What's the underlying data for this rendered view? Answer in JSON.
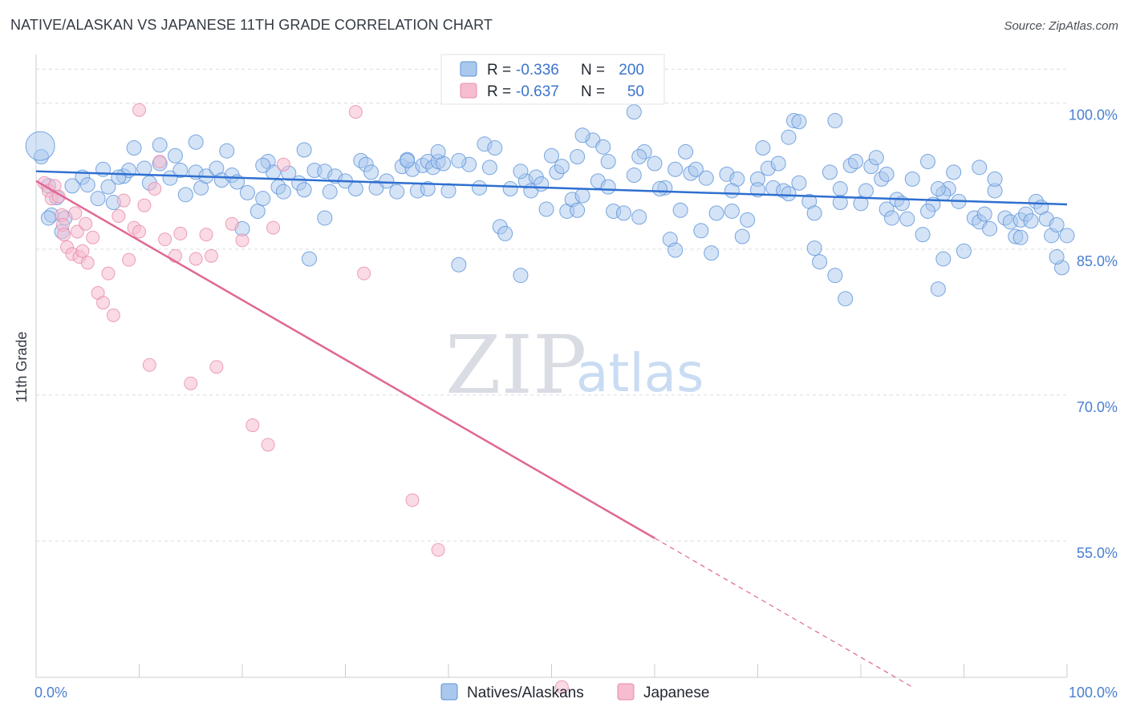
{
  "title": "NATIVE/ALASKAN VS JAPANESE 11TH GRADE CORRELATION CHART",
  "source": "Source: ZipAtlas.com",
  "watermark": {
    "zip": "ZIP",
    "atlas": "atlas"
  },
  "stats": {
    "r_label": "R =",
    "n_label": "N =",
    "rows": [
      {
        "r": "-0.336",
        "n": "200"
      },
      {
        "r": "-0.637",
        "n": "50"
      }
    ]
  },
  "chart_data": {
    "type": "scatter",
    "title": "NATIVE/ALASKAN VS JAPANESE 11TH GRADE CORRELATION CHART",
    "xlabel": "",
    "ylabel": "11th Grade",
    "xlim": [
      0,
      100
    ],
    "ylim": [
      41,
      105
    ],
    "x_tick_labels": [
      "0.0%",
      "100.0%"
    ],
    "y_ticks": [
      55,
      70,
      85,
      100
    ],
    "y_tick_labels": [
      "55.0%",
      "70.0%",
      "85.0%",
      "100.0%"
    ],
    "grid": true,
    "legend_position": "bottom-center",
    "colors": {
      "natives_fill": "#aac8ee",
      "natives_stroke": "#5b92d9",
      "natives_line": "#2e6fd0",
      "japanese_fill": "#f6bcd0",
      "japanese_stroke": "#e88aa9",
      "japanese_line": "#e06793",
      "grid": "#d7dbe0",
      "tick_label": "#4a7fd0"
    },
    "series": [
      {
        "name": "Natives/Alaskans",
        "r": -0.336,
        "n": 200,
        "trend": {
          "x": [
            0,
            100
          ],
          "y": [
            93.0,
            89.6
          ]
        },
        "points": [
          [
            0.5,
            94.5
          ],
          [
            1.2,
            91.5
          ],
          [
            1.5,
            88.5
          ],
          [
            2.0,
            90.3
          ],
          [
            2.5,
            86.8
          ],
          [
            2.8,
            88.2
          ],
          [
            4.5,
            92.4
          ],
          [
            5.0,
            91.6
          ],
          [
            6.0,
            90.2
          ],
          [
            7.0,
            91.4
          ],
          [
            6.5,
            93.2
          ],
          [
            7.5,
            89.8
          ],
          [
            8.5,
            92.5
          ],
          [
            9.0,
            93.1
          ],
          [
            9.5,
            95.4
          ],
          [
            10.5,
            93.3
          ],
          [
            11.0,
            91.8
          ],
          [
            12.0,
            93.8
          ],
          [
            13.0,
            92.3
          ],
          [
            13.5,
            94.6
          ],
          [
            14.0,
            93.1
          ],
          [
            14.5,
            90.6
          ],
          [
            15.5,
            92.9
          ],
          [
            16.0,
            91.3
          ],
          [
            16.5,
            92.5
          ],
          [
            17.5,
            93.3
          ],
          [
            18.0,
            92.1
          ],
          [
            19.0,
            92.6
          ],
          [
            19.5,
            91.9
          ],
          [
            20.0,
            87.1
          ],
          [
            20.5,
            90.8
          ],
          [
            21.5,
            88.9
          ],
          [
            22.0,
            90.2
          ],
          [
            22.5,
            94.0
          ],
          [
            23.0,
            92.9
          ],
          [
            23.5,
            91.4
          ],
          [
            24.0,
            90.9
          ],
          [
            24.5,
            92.8
          ],
          [
            25.5,
            91.8
          ],
          [
            26.0,
            91.1
          ],
          [
            26.5,
            84.0
          ],
          [
            27.0,
            93.1
          ],
          [
            28.0,
            88.2
          ],
          [
            28.5,
            90.9
          ],
          [
            28.0,
            93.0
          ],
          [
            29.0,
            92.5
          ],
          [
            30.0,
            92.0
          ],
          [
            31.0,
            91.2
          ],
          [
            31.5,
            94.1
          ],
          [
            32.0,
            93.7
          ],
          [
            32.5,
            92.9
          ],
          [
            33.0,
            91.3
          ],
          [
            34.0,
            92.0
          ],
          [
            35.0,
            90.9
          ],
          [
            35.5,
            93.5
          ],
          [
            36.0,
            94.2
          ],
          [
            36.5,
            93.2
          ],
          [
            37.0,
            91.0
          ],
          [
            37.5,
            93.6
          ],
          [
            38.0,
            94.0
          ],
          [
            38.5,
            93.4
          ],
          [
            39.0,
            94.0
          ],
          [
            39.5,
            93.8
          ],
          [
            40.0,
            91.0
          ],
          [
            41.0,
            83.4
          ],
          [
            42.0,
            93.7
          ],
          [
            43.0,
            91.3
          ],
          [
            43.5,
            95.8
          ],
          [
            44.0,
            93.4
          ],
          [
            44.5,
            95.4
          ],
          [
            45.0,
            87.3
          ],
          [
            45.5,
            86.6
          ],
          [
            46.0,
            91.2
          ],
          [
            47.0,
            82.3
          ],
          [
            47.5,
            92.0
          ],
          [
            48.0,
            91.0
          ],
          [
            48.5,
            92.4
          ],
          [
            49.0,
            91.7
          ],
          [
            49.5,
            89.1
          ],
          [
            50.0,
            94.6
          ],
          [
            50.5,
            92.9
          ],
          [
            51.0,
            93.5
          ],
          [
            51.5,
            88.9
          ],
          [
            52.0,
            90.1
          ],
          [
            52.5,
            89.0
          ],
          [
            53.0,
            90.5
          ],
          [
            54.0,
            96.2
          ],
          [
            54.5,
            92.0
          ],
          [
            55.0,
            95.5
          ],
          [
            55.5,
            94.0
          ],
          [
            56.0,
            88.9
          ],
          [
            57.0,
            88.7
          ],
          [
            58.0,
            92.6
          ],
          [
            58.5,
            88.3
          ],
          [
            59.0,
            95.0
          ],
          [
            60.0,
            93.8
          ],
          [
            61.0,
            91.3
          ],
          [
            61.5,
            86.0
          ],
          [
            62.0,
            84.9
          ],
          [
            62.5,
            89.0
          ],
          [
            63.0,
            95.0
          ],
          [
            63.5,
            92.8
          ],
          [
            64.0,
            93.2
          ],
          [
            64.5,
            86.9
          ],
          [
            65.0,
            92.3
          ],
          [
            65.5,
            84.6
          ],
          [
            66.0,
            88.7
          ],
          [
            67.0,
            92.7
          ],
          [
            67.5,
            88.9
          ],
          [
            68.0,
            92.2
          ],
          [
            68.5,
            86.3
          ],
          [
            69.0,
            88.0
          ],
          [
            70.0,
            92.2
          ],
          [
            70.5,
            95.4
          ],
          [
            71.0,
            93.3
          ],
          [
            71.5,
            91.3
          ],
          [
            72.0,
            93.8
          ],
          [
            72.5,
            91.0
          ],
          [
            73.0,
            90.7
          ],
          [
            73.5,
            98.2
          ],
          [
            74.0,
            91.8
          ],
          [
            75.0,
            89.9
          ],
          [
            75.5,
            85.1
          ],
          [
            76.0,
            83.7
          ],
          [
            77.0,
            92.9
          ],
          [
            77.5,
            82.3
          ],
          [
            78.0,
            89.8
          ],
          [
            78.5,
            79.9
          ],
          [
            79.0,
            93.6
          ],
          [
            79.5,
            94.0
          ],
          [
            80.0,
            89.7
          ],
          [
            80.5,
            91.0
          ],
          [
            81.0,
            93.5
          ],
          [
            81.5,
            94.4
          ],
          [
            82.0,
            92.2
          ],
          [
            82.5,
            89.1
          ],
          [
            83.0,
            88.2
          ],
          [
            83.5,
            90.1
          ],
          [
            84.0,
            89.7
          ],
          [
            84.5,
            88.1
          ],
          [
            85.0,
            92.2
          ],
          [
            86.0,
            86.5
          ],
          [
            86.5,
            94.0
          ],
          [
            87.0,
            89.6
          ],
          [
            87.5,
            80.9
          ],
          [
            88.0,
            84.0
          ],
          [
            88.5,
            91.2
          ],
          [
            89.0,
            92.9
          ],
          [
            89.5,
            89.9
          ],
          [
            90.0,
            84.8
          ],
          [
            91.0,
            88.2
          ],
          [
            91.5,
            87.8
          ],
          [
            92.0,
            88.6
          ],
          [
            92.5,
            87.1
          ],
          [
            93.0,
            91.0
          ],
          [
            94.0,
            88.2
          ],
          [
            94.5,
            87.8
          ],
          [
            95.0,
            86.3
          ],
          [
            95.5,
            88.0
          ],
          [
            96.0,
            88.6
          ],
          [
            96.5,
            87.9
          ],
          [
            97.0,
            89.9
          ],
          [
            97.5,
            89.3
          ],
          [
            98.0,
            88.1
          ],
          [
            98.5,
            86.4
          ],
          [
            99.0,
            87.5
          ],
          [
            100.0,
            86.4
          ],
          [
            99.5,
            83.1
          ],
          [
            99.0,
            84.2
          ],
          [
            95.5,
            86.2
          ],
          [
            74.0,
            98.1
          ],
          [
            77.5,
            98.2
          ],
          [
            58.0,
            99.1
          ],
          [
            36.0,
            94.1
          ],
          [
            53.0,
            96.7
          ],
          [
            67.5,
            91.0
          ],
          [
            41.0,
            94.1
          ],
          [
            39.0,
            95.0
          ],
          [
            38.0,
            91.2
          ],
          [
            8.0,
            92.4
          ],
          [
            12.0,
            95.7
          ],
          [
            3.5,
            91.5
          ],
          [
            1.2,
            88.2
          ],
          [
            15.5,
            96.0
          ],
          [
            18.5,
            95.1
          ],
          [
            22.0,
            93.6
          ],
          [
            26.0,
            95.2
          ],
          [
            47.0,
            93.0
          ],
          [
            52.5,
            94.5
          ],
          [
            55.5,
            91.4
          ],
          [
            58.5,
            94.5
          ],
          [
            62.0,
            93.2
          ],
          [
            70.0,
            91.1
          ],
          [
            73.0,
            96.5
          ],
          [
            78.0,
            91.2
          ],
          [
            82.5,
            92.7
          ],
          [
            86.5,
            88.9
          ],
          [
            88.0,
            90.7
          ],
          [
            91.5,
            93.4
          ],
          [
            93.0,
            92.2
          ],
          [
            87.5,
            91.2
          ],
          [
            75.5,
            88.7
          ],
          [
            60.5,
            91.2
          ]
        ]
      },
      {
        "name": "Japanese",
        "r": -0.637,
        "n": 50,
        "trend": {
          "x": [
            0,
            60
          ],
          "y": [
            92.0,
            55.3
          ]
        },
        "trend_dashed": {
          "x": [
            60,
            85
          ],
          "y": [
            55.3,
            40.0
          ]
        },
        "points": [
          [
            0.8,
            91.8
          ],
          [
            1.2,
            91.0
          ],
          [
            1.5,
            90.2
          ],
          [
            1.8,
            91.5
          ],
          [
            2.2,
            90.4
          ],
          [
            2.5,
            88.5
          ],
          [
            2.6,
            87.5
          ],
          [
            2.7,
            86.5
          ],
          [
            3.0,
            85.2
          ],
          [
            3.5,
            84.5
          ],
          [
            3.8,
            88.7
          ],
          [
            4.0,
            86.8
          ],
          [
            4.2,
            84.2
          ],
          [
            4.5,
            84.8
          ],
          [
            4.8,
            87.6
          ],
          [
            5.0,
            83.6
          ],
          [
            5.5,
            86.2
          ],
          [
            6.0,
            80.5
          ],
          [
            6.5,
            79.5
          ],
          [
            7.0,
            82.5
          ],
          [
            7.5,
            78.2
          ],
          [
            8.0,
            88.4
          ],
          [
            8.5,
            90.0
          ],
          [
            9.0,
            83.9
          ],
          [
            9.5,
            87.2
          ],
          [
            10.0,
            86.8
          ],
          [
            10.5,
            89.5
          ],
          [
            11.0,
            73.1
          ],
          [
            11.5,
            91.2
          ],
          [
            12.0,
            94.0
          ],
          [
            12.5,
            86.0
          ],
          [
            13.5,
            84.3
          ],
          [
            14.0,
            86.6
          ],
          [
            15.0,
            71.2
          ],
          [
            15.5,
            84.0
          ],
          [
            16.5,
            86.5
          ],
          [
            17.0,
            84.3
          ],
          [
            17.5,
            72.9
          ],
          [
            19.0,
            87.6
          ],
          [
            20.0,
            85.9
          ],
          [
            21.0,
            66.9
          ],
          [
            22.5,
            64.9
          ],
          [
            23.0,
            87.2
          ],
          [
            24.0,
            93.7
          ],
          [
            31.0,
            99.1
          ],
          [
            36.5,
            59.2
          ],
          [
            39.0,
            54.1
          ],
          [
            51.0,
            40.0
          ],
          [
            31.8,
            82.5
          ],
          [
            10.0,
            99.3
          ]
        ]
      }
    ]
  },
  "legend": [
    {
      "label": "Natives/Alaskans",
      "color": "#aac8ee",
      "stroke": "#5b92d9"
    },
    {
      "label": "Japanese",
      "color": "#f6bcd0",
      "stroke": "#e88aa9"
    }
  ]
}
